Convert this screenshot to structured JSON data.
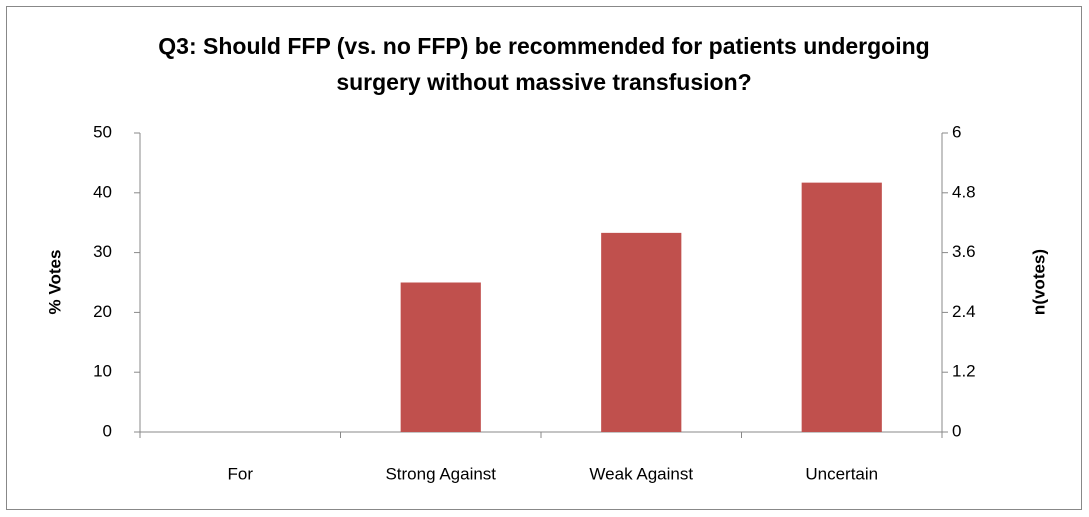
{
  "chart_data": {
    "type": "bar",
    "title": "Q3: Should FFP (vs. no FFP) be recommended for patients undergoing surgery without massive transfusion?",
    "categories": [
      "For",
      "Strong Against",
      "Weak Against",
      "Uncertain"
    ],
    "values": [
      0,
      25,
      33.3,
      41.7
    ],
    "color": "#c0504d",
    "y_label": "% Votes",
    "y2_label": "n(votes)",
    "ylim": [
      0,
      50
    ],
    "yticks": [
      0,
      10,
      20,
      30,
      40,
      50
    ],
    "y2lim": [
      0,
      6
    ],
    "y2ticks": [
      0,
      1.2,
      2.4,
      3.6,
      4.8,
      6
    ],
    "grid": false
  }
}
